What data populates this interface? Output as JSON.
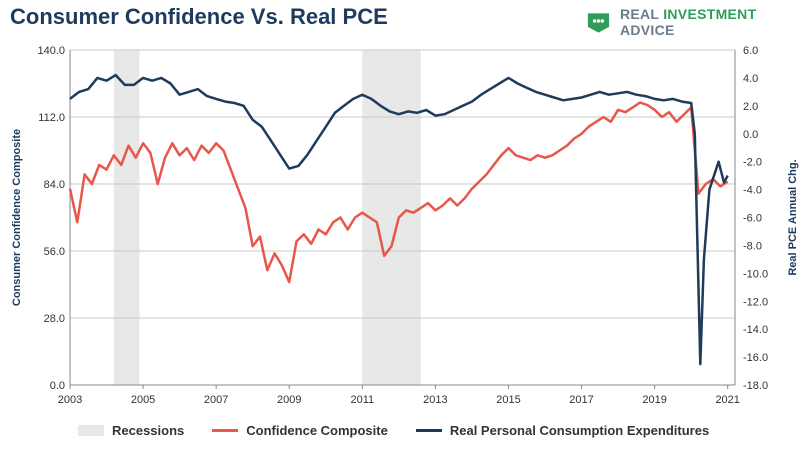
{
  "title": "Consumer Confidence Vs. Real PCE",
  "brand": {
    "part1": "REAL ",
    "part2": "INVESTMENT ",
    "part3": "ADVICE",
    "icon": "piggy-bank-icon"
  },
  "colors": {
    "confidence": "#e8574a",
    "pce": "#1f3b5c",
    "recession": "#e8e8e8",
    "grid": "#c8c8c8"
  },
  "chart_data": {
    "type": "line",
    "title": "Consumer Confidence Vs. Real PCE",
    "xlabel": "",
    "ylabel": "Consumer Confidence Composite",
    "y2label": "Real PCE Annual Chg.",
    "xlim": [
      2003,
      2021.2
    ],
    "ylim": [
      0,
      140
    ],
    "y2lim": [
      -18,
      6
    ],
    "x_ticks": [
      "2003",
      "2005",
      "2007",
      "2009",
      "2011",
      "2013",
      "2015",
      "2017",
      "2019",
      "2021"
    ],
    "y_ticks": [
      "0.0",
      "28.0",
      "56.0",
      "84.0",
      "112.0",
      "140.0"
    ],
    "y2_ticks": [
      "-18.0",
      "-16.0",
      "-14.0",
      "-12.0",
      "-10.0",
      "-8.0",
      "-6.0",
      "-4.0",
      "-2.0",
      "0.0",
      "2.0",
      "4.0",
      "6.0"
    ],
    "grid": "horizontal",
    "legend_position": "bottom",
    "recessions": [
      [
        2004.2,
        2004.9
      ],
      [
        2011.0,
        2012.6
      ]
    ],
    "series": [
      {
        "name": "Confidence Composite",
        "axis": "left",
        "x": [
          2003.0,
          2003.2,
          2003.4,
          2003.6,
          2003.8,
          2004.0,
          2004.2,
          2004.4,
          2004.6,
          2004.8,
          2005.0,
          2005.2,
          2005.4,
          2005.6,
          2005.8,
          2006.0,
          2006.2,
          2006.4,
          2006.6,
          2006.8,
          2007.0,
          2007.2,
          2007.4,
          2007.6,
          2007.8,
          2008.0,
          2008.2,
          2008.4,
          2008.6,
          2008.8,
          2009.0,
          2009.2,
          2009.4,
          2009.6,
          2009.8,
          2010.0,
          2010.2,
          2010.4,
          2010.6,
          2010.8,
          2011.0,
          2011.2,
          2011.4,
          2011.6,
          2011.8,
          2012.0,
          2012.2,
          2012.4,
          2012.6,
          2012.8,
          2013.0,
          2013.2,
          2013.4,
          2013.6,
          2013.8,
          2014.0,
          2014.2,
          2014.4,
          2014.6,
          2014.8,
          2015.0,
          2015.2,
          2015.4,
          2015.6,
          2015.8,
          2016.0,
          2016.2,
          2016.4,
          2016.6,
          2016.8,
          2017.0,
          2017.2,
          2017.4,
          2017.6,
          2017.8,
          2018.0,
          2018.2,
          2018.4,
          2018.6,
          2018.8,
          2019.0,
          2019.2,
          2019.4,
          2019.6,
          2019.8,
          2020.0,
          2020.2,
          2020.4,
          2020.6,
          2020.8,
          2021.0
        ],
        "values": [
          82,
          68,
          88,
          84,
          92,
          90,
          96,
          92,
          100,
          95,
          101,
          97,
          84,
          95,
          101,
          96,
          99,
          94,
          100,
          97,
          101,
          98,
          90,
          82,
          74,
          58,
          62,
          48,
          55,
          50,
          43,
          60,
          63,
          59,
          65,
          63,
          68,
          70,
          65,
          70,
          72,
          70,
          68,
          54,
          58,
          70,
          73,
          72,
          74,
          76,
          73,
          75,
          78,
          75,
          78,
          82,
          85,
          88,
          92,
          96,
          99,
          96,
          95,
          94,
          96,
          95,
          96,
          98,
          100,
          103,
          105,
          108,
          110,
          112,
          110,
          115,
          114,
          116,
          118,
          117,
          115,
          112,
          114,
          110,
          113,
          116,
          80,
          84,
          86,
          83,
          85
        ]
      },
      {
        "name": "Real Personal Consumption Expenditures",
        "axis": "right",
        "x": [
          2003.0,
          2003.25,
          2003.5,
          2003.75,
          2004.0,
          2004.25,
          2004.5,
          2004.75,
          2005.0,
          2005.25,
          2005.5,
          2005.75,
          2006.0,
          2006.25,
          2006.5,
          2006.75,
          2007.0,
          2007.25,
          2007.5,
          2007.75,
          2008.0,
          2008.25,
          2008.5,
          2008.75,
          2009.0,
          2009.25,
          2009.5,
          2009.75,
          2010.0,
          2010.25,
          2010.5,
          2010.75,
          2011.0,
          2011.25,
          2011.5,
          2011.75,
          2012.0,
          2012.25,
          2012.5,
          2012.75,
          2013.0,
          2013.25,
          2013.5,
          2013.75,
          2014.0,
          2014.25,
          2014.5,
          2014.75,
          2015.0,
          2015.25,
          2015.5,
          2015.75,
          2016.0,
          2016.25,
          2016.5,
          2016.75,
          2017.0,
          2017.25,
          2017.5,
          2017.75,
          2018.0,
          2018.25,
          2018.5,
          2018.75,
          2019.0,
          2019.25,
          2019.5,
          2019.75,
          2020.0,
          2020.1,
          2020.25,
          2020.35,
          2020.5,
          2020.75,
          2020.9,
          2021.0
        ],
        "values": [
          2.5,
          3.0,
          3.2,
          4.0,
          3.8,
          4.2,
          3.5,
          3.5,
          4.0,
          3.8,
          4.0,
          3.6,
          2.8,
          3.0,
          3.2,
          2.7,
          2.5,
          2.3,
          2.2,
          2.0,
          1.0,
          0.5,
          -0.5,
          -1.5,
          -2.5,
          -2.3,
          -1.5,
          -0.5,
          0.5,
          1.5,
          2.0,
          2.5,
          2.8,
          2.5,
          2.0,
          1.6,
          1.4,
          1.6,
          1.5,
          1.7,
          1.3,
          1.4,
          1.7,
          2.0,
          2.3,
          2.8,
          3.2,
          3.6,
          4.0,
          3.6,
          3.3,
          3.0,
          2.8,
          2.6,
          2.4,
          2.5,
          2.6,
          2.8,
          3.0,
          2.8,
          2.9,
          3.0,
          2.8,
          2.7,
          2.5,
          2.4,
          2.5,
          2.3,
          2.2,
          0.0,
          -16.5,
          -9.0,
          -4.0,
          -2.0,
          -3.5,
          -3.0
        ]
      }
    ]
  },
  "legend": [
    {
      "label": "Recessions",
      "kind": "box",
      "color": "#e8e8e8"
    },
    {
      "label": "Confidence Composite",
      "kind": "line",
      "color": "#e8574a"
    },
    {
      "label": "Real Personal Consumption Expenditures",
      "kind": "line",
      "color": "#1f3b5c"
    }
  ]
}
